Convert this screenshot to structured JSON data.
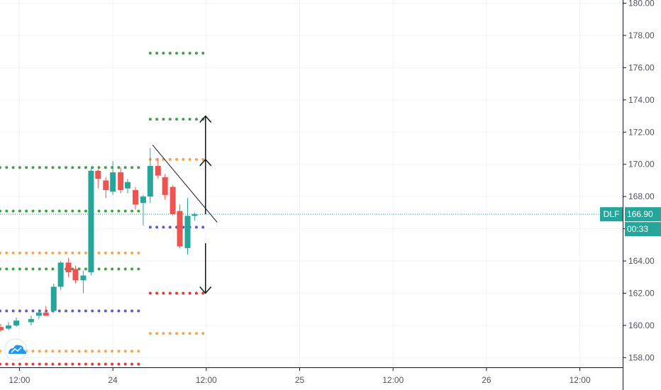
{
  "chart_data": {
    "type": "candlestick",
    "symbol": "DLF",
    "last_price": "166.90",
    "countdown": "00:33",
    "ylim": [
      157.4,
      180.2
    ],
    "y_ticks": [
      "158.00",
      "160.00",
      "162.00",
      "164.00",
      "166.00",
      "168.00",
      "170.00",
      "172.00",
      "174.00",
      "176.00",
      "178.00",
      "180.00"
    ],
    "x_ticks": [
      {
        "t": 12,
        "label": "12:00"
      },
      {
        "t": 24,
        "label": "24"
      },
      {
        "t": 36,
        "label": "12:00"
      },
      {
        "t": 48,
        "label": "25"
      },
      {
        "t": 60,
        "label": "12:00"
      },
      {
        "t": 72,
        "label": "26"
      },
      {
        "t": 84,
        "label": "12:00"
      }
    ],
    "xlim": [
      9.5,
      89.5
    ],
    "candles": [
      {
        "t": 9.6,
        "o": 159.9,
        "h": 160.1,
        "l": 159.6,
        "c": 159.7
      },
      {
        "t": 10.6,
        "o": 159.8,
        "h": 160.2,
        "l": 159.7,
        "c": 160.0
      },
      {
        "t": 11.6,
        "o": 160.0,
        "h": 160.5,
        "l": 159.9,
        "c": 160.3
      },
      {
        "t": 13.5,
        "o": 160.2,
        "h": 160.6,
        "l": 160.0,
        "c": 160.4
      },
      {
        "t": 14.5,
        "o": 160.6,
        "h": 161.0,
        "l": 160.4,
        "c": 160.8
      },
      {
        "t": 15.4,
        "o": 160.8,
        "h": 161.2,
        "l": 160.6,
        "c": 160.6
      },
      {
        "t": 16.4,
        "o": 160.9,
        "h": 162.6,
        "l": 160.8,
        "c": 162.4
      },
      {
        "t": 17.3,
        "o": 162.4,
        "h": 164.0,
        "l": 162.2,
        "c": 163.9
      },
      {
        "t": 18.3,
        "o": 163.9,
        "h": 164.2,
        "l": 163.0,
        "c": 163.3
      },
      {
        "t": 19.2,
        "o": 163.5,
        "h": 163.7,
        "l": 162.6,
        "c": 162.8
      },
      {
        "t": 20.2,
        "o": 162.8,
        "h": 163.4,
        "l": 162.0,
        "c": 163.1
      },
      {
        "t": 21.2,
        "o": 163.3,
        "h": 169.8,
        "l": 163.1,
        "c": 169.6
      },
      {
        "t": 22.1,
        "o": 169.6,
        "h": 169.7,
        "l": 168.5,
        "c": 169.1
      },
      {
        "t": 23.1,
        "o": 169.0,
        "h": 169.2,
        "l": 167.9,
        "c": 168.4
      },
      {
        "t": 24.0,
        "o": 168.3,
        "h": 170.2,
        "l": 168.1,
        "c": 169.5
      },
      {
        "t": 25.0,
        "o": 169.5,
        "h": 169.8,
        "l": 168.2,
        "c": 168.4
      },
      {
        "t": 25.9,
        "o": 168.5,
        "h": 169.1,
        "l": 168.2,
        "c": 168.9
      },
      {
        "t": 26.9,
        "o": 168.4,
        "h": 168.6,
        "l": 167.2,
        "c": 167.5
      },
      {
        "t": 27.9,
        "o": 167.6,
        "h": 168.1,
        "l": 166.2,
        "c": 168.0
      },
      {
        "t": 28.8,
        "o": 168.0,
        "h": 171.0,
        "l": 167.6,
        "c": 169.9
      },
      {
        "t": 29.8,
        "o": 169.9,
        "h": 170.4,
        "l": 169.1,
        "c": 169.3
      },
      {
        "t": 30.7,
        "o": 169.2,
        "h": 169.4,
        "l": 167.8,
        "c": 168.1
      },
      {
        "t": 31.7,
        "o": 168.6,
        "h": 168.7,
        "l": 166.8,
        "c": 166.9
      },
      {
        "t": 32.6,
        "o": 167.1,
        "h": 167.5,
        "l": 164.8,
        "c": 164.9
      },
      {
        "t": 33.6,
        "o": 164.8,
        "h": 167.9,
        "l": 164.4,
        "c": 166.8
      },
      {
        "t": 34.5,
        "o": 166.8,
        "h": 167.0,
        "l": 166.5,
        "c": 166.9
      }
    ],
    "levels": [
      {
        "price": 176.9,
        "t_start": 28.8,
        "t_end": 35.7,
        "color": "#43a047"
      },
      {
        "price": 172.8,
        "t_start": 28.8,
        "t_end": 35.7,
        "color": "#43a047"
      },
      {
        "price": 170.3,
        "t_start": 28.8,
        "t_end": 35.7,
        "color": "#ffa04d"
      },
      {
        "price": 166.1,
        "t_start": 28.8,
        "t_end": 35.7,
        "color": "#5b5bd6"
      },
      {
        "price": 162.0,
        "t_start": 28.8,
        "t_end": 35.7,
        "color": "#e53935"
      },
      {
        "price": 159.5,
        "t_start": 28.8,
        "t_end": 35.7,
        "color": "#ffa04d"
      },
      {
        "price": 169.8,
        "t_start": 9.5,
        "t_end": 28.1,
        "color": "#43a047"
      },
      {
        "price": 167.1,
        "t_start": 9.5,
        "t_end": 28.1,
        "color": "#43a047"
      },
      {
        "price": 164.5,
        "t_start": 9.5,
        "t_end": 28.1,
        "color": "#ffa04d"
      },
      {
        "price": 163.5,
        "t_start": 9.5,
        "t_end": 28.1,
        "color": "#43a047"
      },
      {
        "price": 160.9,
        "t_start": 9.5,
        "t_end": 28.1,
        "color": "#5b5bd6"
      },
      {
        "price": 158.4,
        "t_start": 9.5,
        "t_end": 28.1,
        "color": "#ffa04d"
      },
      {
        "price": 157.6,
        "t_start": 9.5,
        "t_end": 28.1,
        "color": "#e53935"
      }
    ],
    "trendline": {
      "t1": 29.1,
      "p1": 171.2,
      "t2": 37.4,
      "p2": 166.4
    },
    "arrows": [
      {
        "t": 35.9,
        "from": 166.9,
        "to": 173.0
      },
      {
        "t": 35.9,
        "from": 168.0,
        "to": 170.3
      },
      {
        "t": 35.9,
        "from": 165.1,
        "to": 162.0
      }
    ],
    "colors": {
      "up": "#26a69a",
      "down": "#ef5350",
      "grid": "#f0f3fa",
      "axis_text": "#50535e",
      "tag": "#26a69a"
    }
  }
}
